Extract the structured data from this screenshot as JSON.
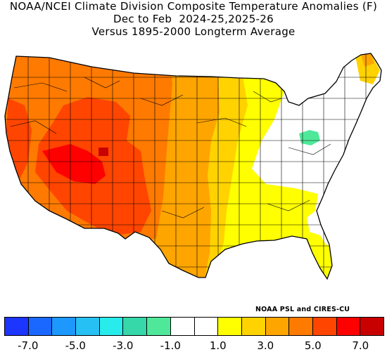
{
  "title": {
    "line1": "NOAA/NCEI Climate Division Composite Temperature Anomalies (F)",
    "line2": "Dec to Feb  2024-25,2025-26",
    "line3": "Versus 1895-2000 Longterm Average"
  },
  "credit": "NOAA PSL and CIRES-CU",
  "legend": {
    "bins": [
      "#1c35ff",
      "#1a68ff",
      "#1c98ff",
      "#26c0f5",
      "#28ecec",
      "#36d7a8",
      "#4fe89a",
      "#ffffff",
      "#ffffff",
      "#ffff00",
      "#ffd200",
      "#ffa500",
      "#ff7a00",
      "#ff4500",
      "#ff0000",
      "#c80000"
    ],
    "ticks": [
      "-7.0",
      "-5.0",
      "-3.0",
      "-1.0",
      "1.0",
      "3.0",
      "5.0",
      "7.0"
    ],
    "tick_positions": [
      1,
      3,
      5,
      7,
      9,
      11,
      13,
      15
    ]
  },
  "map_colors": {
    "deep_red": "#ff4500",
    "red_orange": "#ff7a00",
    "orange": "#ffa500",
    "gold": "#ffd200",
    "yellow": "#ffff00",
    "near_normal": "#ffffff",
    "teal": "#4fe89a",
    "dark_red": "#c80000",
    "outline": "#000000"
  }
}
